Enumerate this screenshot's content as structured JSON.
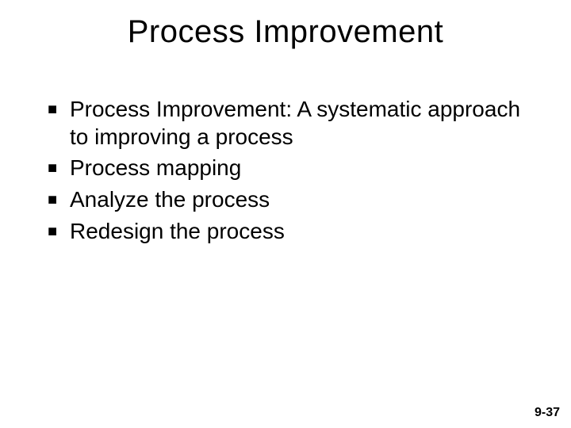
{
  "background_color": "#ffffff",
  "text_color": "#000000",
  "title": {
    "text": "Process Improvement",
    "fontsize": 40,
    "font_weight": 400
  },
  "bullets": {
    "marker": "■",
    "fontsize": 28,
    "items": [
      "Process Improvement:   A systematic approach to improving a process",
      "Process mapping",
      "Analyze the process",
      "Redesign the process"
    ]
  },
  "page_number": {
    "text": "9-37",
    "fontsize": 16,
    "font_weight": 700
  }
}
